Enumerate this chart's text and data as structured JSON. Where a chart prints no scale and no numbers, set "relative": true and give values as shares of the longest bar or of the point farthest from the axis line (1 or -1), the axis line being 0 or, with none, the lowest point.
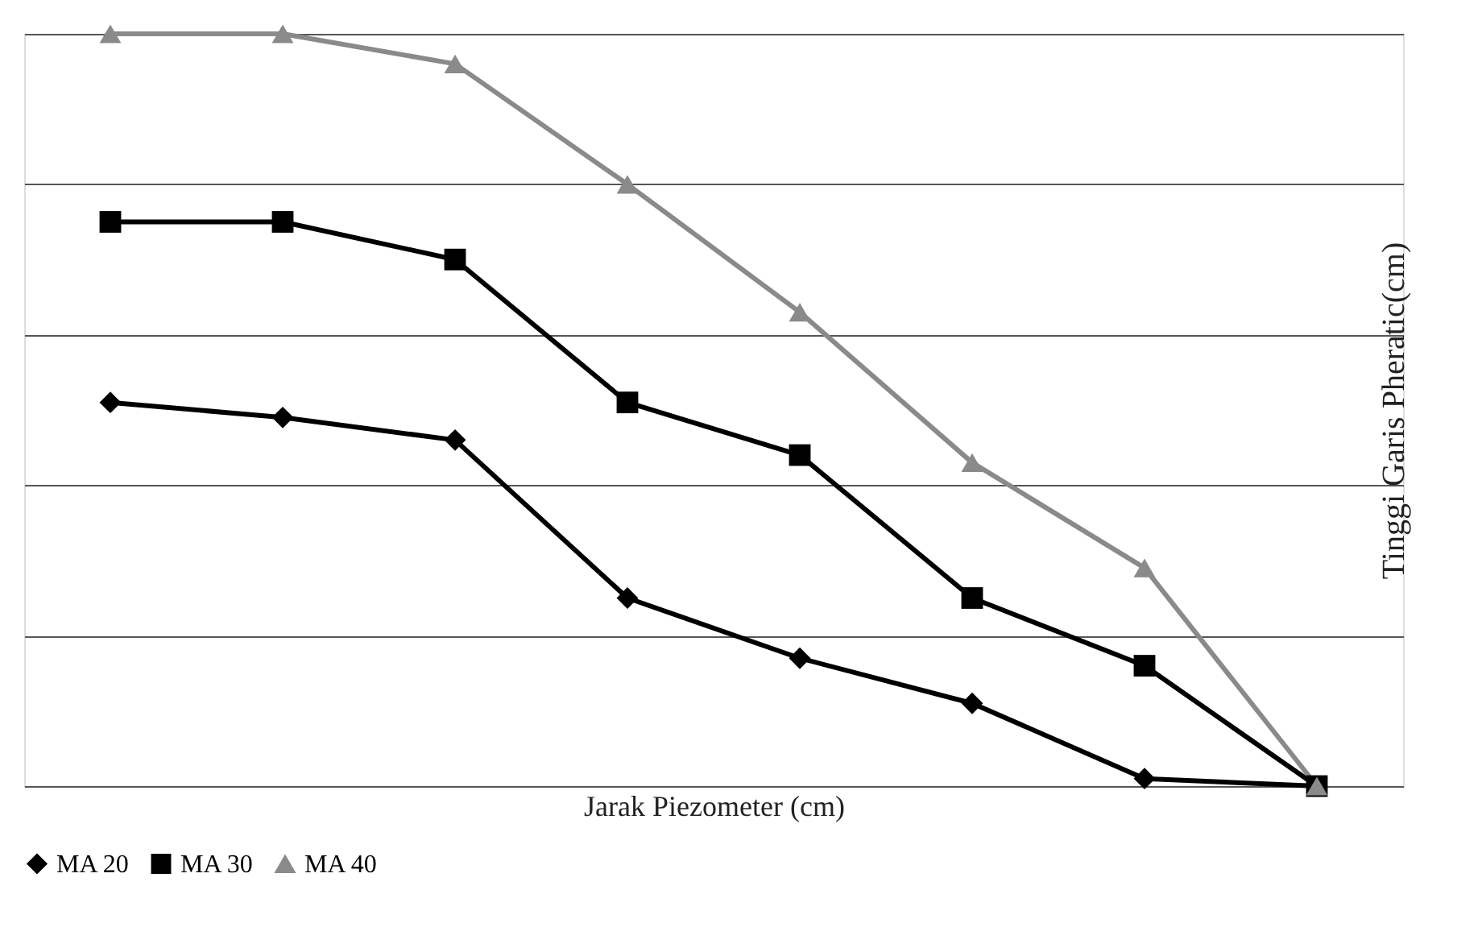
{
  "chart_data": {
    "type": "line",
    "relative": true,
    "xlabel": "Jarak Piezometer (cm)",
    "ylabel": "Tinggi Garis Pheratic(cm)",
    "categories": [
      null,
      null,
      null,
      null,
      null,
      null,
      null,
      null
    ],
    "grid": "y",
    "legend": "bottom",
    "tick_labels": false,
    "line_style": "solid",
    "series": [
      {
        "name": "MA 20",
        "color": "#000000",
        "marker": "diamond",
        "values": [
          0.51,
          0.49,
          0.46,
          0.25,
          0.17,
          0.11,
          0.01,
          0
        ]
      },
      {
        "name": "MA 30",
        "color": "#000000",
        "marker": "square",
        "values": [
          0.75,
          0.75,
          0.7,
          0.51,
          0.44,
          0.25,
          0.16,
          0
        ]
      },
      {
        "name": "MA 40",
        "color": "#8a8a8a",
        "marker": "triangle",
        "values": [
          1,
          1,
          0.96,
          0.8,
          0.63,
          0.43,
          0.29,
          0
        ]
      }
    ]
  }
}
